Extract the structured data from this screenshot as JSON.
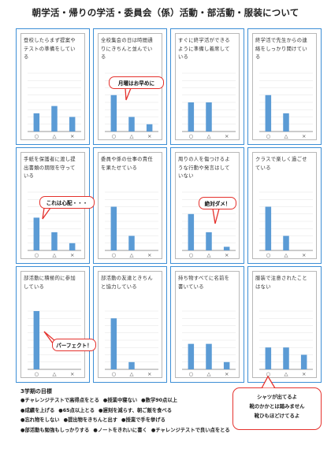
{
  "page_title": "朝学活・帰りの学活・委員会（係）活動・部活動・服装について",
  "chart_data": [
    {
      "type": "bar",
      "title": "登校したらまず提案やテストの準備をしている",
      "categories": [
        "○",
        "△",
        "×"
      ],
      "values": [
        5,
        7,
        4
      ],
      "ylim": [
        0,
        16
      ]
    },
    {
      "type": "bar",
      "title": "全校集会の日は時間通りにきちんと並んでいる",
      "categories": [
        "○",
        "△",
        "×"
      ],
      "values": [
        10,
        4,
        2
      ],
      "ylim": [
        0,
        16
      ]
    },
    {
      "type": "bar",
      "title": "すぐに終学活ができるように準備し着席している",
      "categories": [
        "○",
        "△",
        "×"
      ],
      "values": [
        8,
        8,
        0
      ],
      "ylim": [
        0,
        16
      ]
    },
    {
      "type": "bar",
      "title": "終学活で先生からの連絡をしっかり聞けている",
      "categories": [
        "○",
        "△",
        "×"
      ],
      "values": [
        10,
        5,
        0
      ],
      "ylim": [
        0,
        16
      ]
    },
    {
      "type": "bar",
      "title": "手紙を保護者に渡し提出書類の期限を守っている",
      "categories": [
        "○",
        "△",
        "×"
      ],
      "values": [
        9,
        5,
        2
      ],
      "ylim": [
        0,
        16
      ]
    },
    {
      "type": "bar",
      "title": "委員や係の仕事の責任を果たせている",
      "categories": [
        "○",
        "△",
        "×"
      ],
      "values": [
        12,
        4,
        0
      ],
      "ylim": [
        0,
        16
      ]
    },
    {
      "type": "bar",
      "title": "周りの人を傷つけるような行動や発言はしていない",
      "categories": [
        "○",
        "△",
        "×"
      ],
      "values": [
        10,
        5,
        1
      ],
      "ylim": [
        0,
        16
      ]
    },
    {
      "type": "bar",
      "title": "クラスで楽しく過ごせている",
      "categories": [
        "○",
        "△",
        "×"
      ],
      "values": [
        12,
        4,
        0
      ],
      "ylim": [
        0,
        16
      ]
    },
    {
      "type": "bar",
      "title": "部活動に積極的に参加している",
      "categories": [
        "○",
        "△",
        "×"
      ],
      "values": [
        16,
        0,
        0
      ],
      "ylim": [
        0,
        16
      ]
    },
    {
      "type": "bar",
      "title": "部活動の友達ときちんと協力している",
      "categories": [
        "○",
        "△",
        "×"
      ],
      "values": [
        14,
        2,
        0
      ],
      "ylim": [
        0,
        16
      ]
    },
    {
      "type": "bar",
      "title": "持ち物すべてに名前を書いている",
      "categories": [
        "○",
        "△",
        "×"
      ],
      "values": [
        7,
        7,
        2
      ],
      "ylim": [
        0,
        16
      ]
    },
    {
      "type": "bar",
      "title": "服装で注意されたことはない",
      "categories": [
        "○",
        "△",
        "×"
      ],
      "values": [
        6,
        6,
        4
      ],
      "ylim": [
        0,
        16
      ]
    }
  ],
  "callouts": [
    "月曜はお早めに",
    "これは心配・・・",
    "絶対ダメ！",
    "パーフェクト！"
  ],
  "goals": {
    "title": "3学期の目標",
    "lines": [
      [
        "●チャレンジテストで高得点をとる",
        "●授業中寝ない",
        "●数学90点以上"
      ],
      [
        "●成績を上げる",
        "●65点以上とる",
        "●遅刻を減らす、朝ご飯を食べる"
      ],
      [
        "●忘れ物をしない",
        "●提出物をきちんと出す",
        "●授業で手を挙げる"
      ],
      [
        "●部活動も勉強もしっかりする",
        "●ノートをきれいに書く",
        "●チャレンジテストで良い点をとる"
      ]
    ]
  },
  "note": [
    "シャツが出てるよ",
    "靴のかかとは踏みません",
    "靴ひもほどけてるよ"
  ],
  "colors": {
    "bar": "#5b9bd5",
    "frame": "#3d8fd6",
    "callout_border": "#e5322d"
  }
}
